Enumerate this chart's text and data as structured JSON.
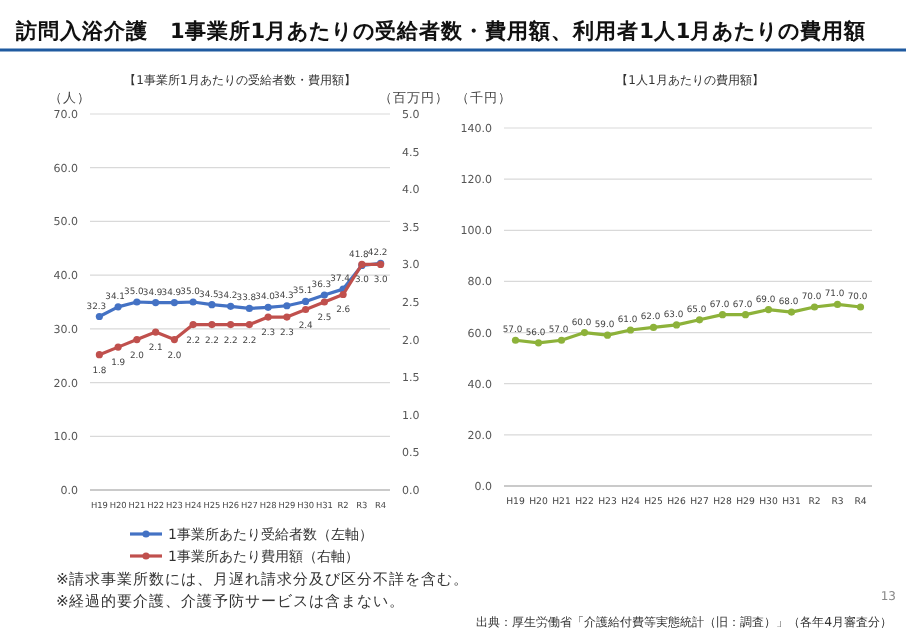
{
  "chart_data": [
    {
      "type": "line",
      "title": "【1事業所1月あたりの受給者数・費用額】",
      "ylabel": "（人）",
      "y2label": "（百万円）",
      "annotations": [
        "訪問入浴介護　1事業所1月あたりの受給者数・費用額、利用者1人1月あたりの費用額",
        "※請求事業所数には、月遅れ請求分及び区分不詳を含む。",
        "※経過的要介護、介護予防サービスは含まない。"
      ],
      "categories": [
        "H19",
        "H20",
        "H21",
        "H22",
        "H23",
        "H24",
        "H25",
        "H26",
        "H27",
        "H28",
        "H29",
        "H30",
        "H31",
        "R2",
        "R3",
        "R4"
      ],
      "series": [
        {
          "name": "1事業所あたり受給者数（左軸）",
          "color": "#4472c4",
          "values": [
            32.3,
            34.1,
            35.0,
            34.9,
            34.9,
            35.0,
            34.5,
            34.2,
            33.8,
            34.0,
            34.3,
            35.1,
            36.3,
            37.4,
            41.8,
            42.2
          ],
          "value_labels": [
            "32.3",
            "34.1",
            "35.0",
            "34.9",
            "34.9",
            "35.0",
            "34.5",
            "34.2",
            "33.8",
            "34.0",
            "34.3",
            "35.1",
            "36.3",
            "37.4",
            "41.8",
            "42.2"
          ]
        },
        {
          "name": "1事業所あたり費用額（右軸）",
          "color": "#c0504d",
          "axis": "y2",
          "values": [
            1.8,
            1.9,
            2.0,
            2.1,
            2.0,
            2.2,
            2.2,
            2.2,
            2.2,
            2.3,
            2.3,
            2.4,
            2.5,
            2.6,
            3.0,
            3.0
          ],
          "value_labels": [
            "1.8",
            "1.9",
            "2.0",
            "2.1",
            "2.0",
            "2.2",
            "2.2",
            "2.2",
            "2.2",
            "2.3",
            "2.3",
            "2.4",
            "2.5",
            "2.6",
            "3.0",
            "3.0"
          ]
        }
      ],
      "ylim": [
        0,
        70
      ],
      "yticks": [
        {
          "value": 0,
          "label": "0.0"
        },
        {
          "value": 10,
          "label": "10.0"
        },
        {
          "value": 20,
          "label": "20.0"
        },
        {
          "value": 30,
          "label": "30.0"
        },
        {
          "value": 40,
          "label": "40.0"
        },
        {
          "value": 50,
          "label": "50.0"
        },
        {
          "value": 60,
          "label": "60.0"
        },
        {
          "value": 70,
          "label": "70.0"
        }
      ],
      "y2lim": [
        0,
        5
      ],
      "y2ticks": [
        {
          "value": 0,
          "label": "0.0"
        },
        {
          "value": 0.5,
          "label": "0.5"
        },
        {
          "value": 1,
          "label": "1.0"
        },
        {
          "value": 1.5,
          "label": "1.5"
        },
        {
          "value": 2,
          "label": "2.0"
        },
        {
          "value": 2.5,
          "label": "2.5"
        },
        {
          "value": 3,
          "label": "3.0"
        },
        {
          "value": 3.5,
          "label": "3.5"
        },
        {
          "value": 4,
          "label": "4.0"
        },
        {
          "value": 4.5,
          "label": "4.5"
        },
        {
          "value": 5,
          "label": "5.0"
        }
      ],
      "grid": "y",
      "legend": "bottom",
      "marker": "circle"
    },
    {
      "type": "line",
      "title": "【1人1月あたりの費用額】",
      "ylabel": "（千円）",
      "annotations": [
        "出典：厚生労働省「介護給付費等実態統計（旧：調査）」（各年4月審査分）",
        "13"
      ],
      "categories": [
        "H19",
        "H20",
        "H21",
        "H22",
        "H23",
        "H24",
        "H25",
        "H26",
        "H27",
        "H28",
        "H29",
        "H30",
        "H31",
        "R2",
        "R3",
        "R4"
      ],
      "series": [
        {
          "color": "#8db23a",
          "values": [
            57.0,
            56.0,
            57.0,
            60.0,
            59.0,
            61.0,
            62.0,
            63.0,
            65.0,
            67.0,
            67.0,
            69.0,
            68.0,
            70.0,
            71.0,
            70.0
          ],
          "value_labels": [
            "57.0",
            "56.0",
            "57.0",
            "60.0",
            "59.0",
            "61.0",
            "62.0",
            "63.0",
            "65.0",
            "67.0",
            "67.0",
            "69.0",
            "68.0",
            "70.0",
            "71.0",
            "70.0"
          ]
        }
      ],
      "ylim": [
        0,
        140
      ],
      "yticks": [
        {
          "value": 0,
          "label": "0.0"
        },
        {
          "value": 20,
          "label": "20.0"
        },
        {
          "value": 40,
          "label": "40.0"
        },
        {
          "value": 60,
          "label": "60.0"
        },
        {
          "value": 80,
          "label": "80.0"
        },
        {
          "value": 100,
          "label": "100.0"
        },
        {
          "value": 120,
          "label": "120.0"
        },
        {
          "value": 140,
          "label": "140.0"
        }
      ],
      "grid": "y",
      "marker": "circle"
    }
  ]
}
